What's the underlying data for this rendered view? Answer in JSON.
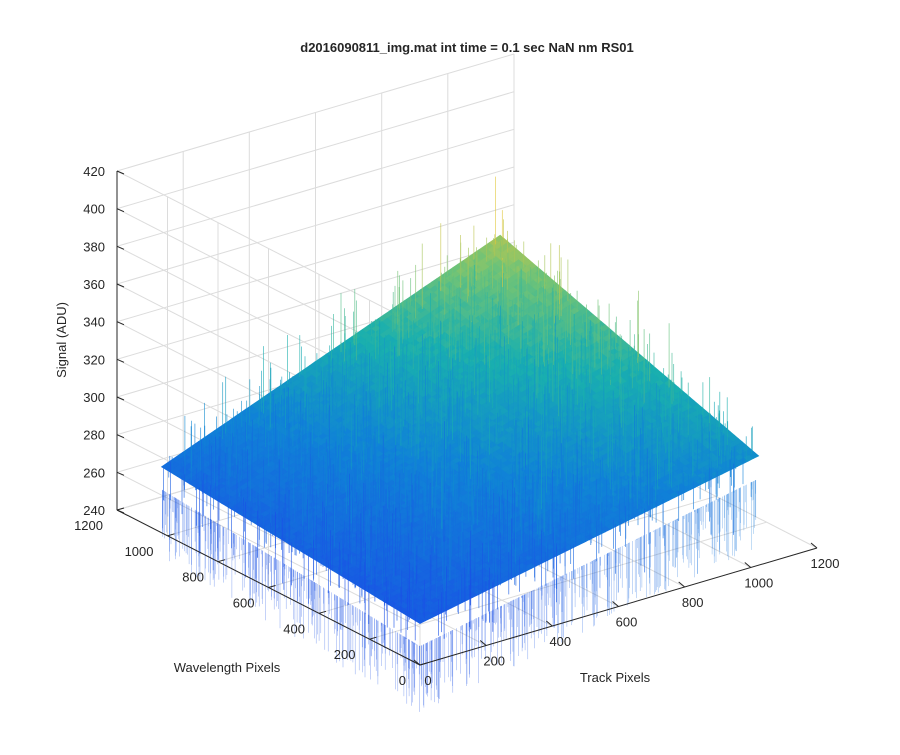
{
  "chart_data": {
    "type": "surface",
    "title": "d2016090811_img.mat int time = 0.1 sec  NaN nm RS01",
    "xlabel": "Track Pixels",
    "ylabel": "Wavelength Pixels",
    "zlabel": "Signal (ADU)",
    "xlim": [
      0,
      1200
    ],
    "ylim": [
      0,
      1200
    ],
    "zlim": [
      240,
      420
    ],
    "x_ticks": [
      "0",
      "200",
      "400",
      "600",
      "800",
      "1000",
      "1200"
    ],
    "y_ticks": [
      "0",
      "200",
      "400",
      "600",
      "800",
      "1000",
      "1200"
    ],
    "z_ticks": [
      "240",
      "260",
      "280",
      "300",
      "320",
      "340",
      "360",
      "380",
      "400",
      "420"
    ],
    "grid": true,
    "colormap": "parula",
    "surface_extent": {
      "x": [
        0,
        1024
      ],
      "y": [
        0,
        1024
      ]
    },
    "surface_corners": [
      {
        "x": 0,
        "y": 0,
        "z": 262
      },
      {
        "x": 1024,
        "y": 0,
        "z": 298
      },
      {
        "x": 0,
        "y": 1024,
        "z": 275
      },
      {
        "x": 1024,
        "y": 1024,
        "z": 345
      }
    ],
    "noise_amplitude": 30
  },
  "colors": {
    "surface_low": "#1a64dc",
    "surface_mid": "#1faab4",
    "surface_high": "#c8c245",
    "grid": "#dcdcdc",
    "axis": "#262626"
  }
}
